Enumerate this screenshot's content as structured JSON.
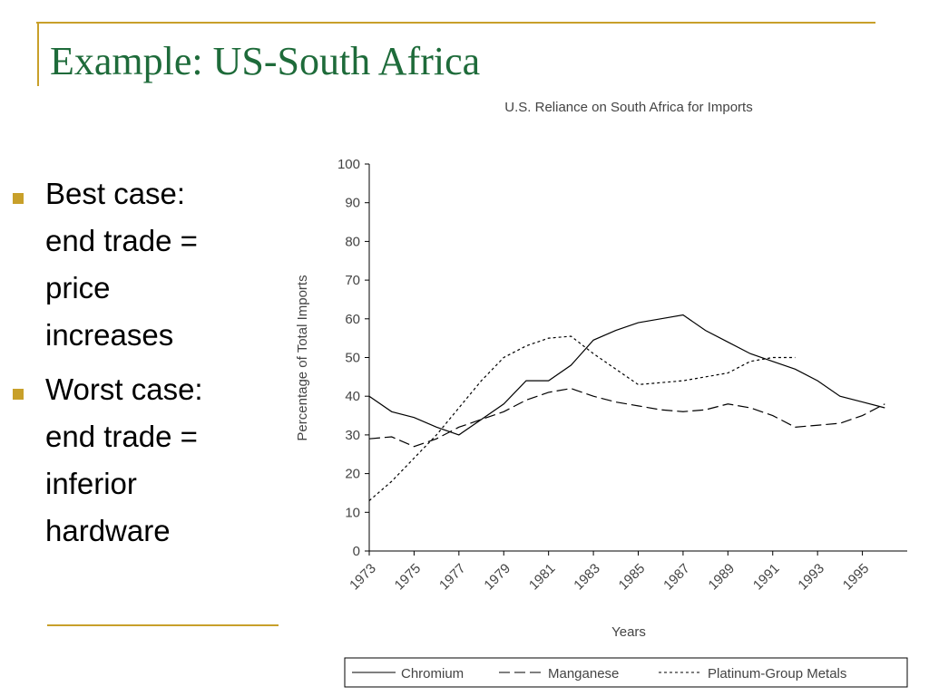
{
  "slide": {
    "title": "Example: US-South Africa",
    "bullets": [
      [
        "Best case:",
        "end trade =",
        "price",
        "increases"
      ],
      [
        "Worst case:",
        "end trade =",
        "inferior",
        "hardware"
      ]
    ]
  },
  "chart_data": {
    "type": "line",
    "title": "U.S. Reliance on South Africa for Imports",
    "x_label": "Years",
    "y_label": "Percentage of Total Imports",
    "x": [
      1973,
      1974,
      1975,
      1976,
      1977,
      1978,
      1979,
      1980,
      1981,
      1982,
      1983,
      1984,
      1985,
      1986,
      1987,
      1988,
      1989,
      1990,
      1991,
      1992,
      1993,
      1994,
      1995,
      1996
    ],
    "series": [
      {
        "name": "Chromium",
        "color": "#000000",
        "dash": "solid",
        "values": [
          40,
          36,
          34.5,
          32,
          30,
          34,
          38,
          44,
          44,
          48,
          54.5,
          57,
          59,
          60,
          61,
          57,
          54,
          51,
          49,
          47,
          44,
          40,
          38.5,
          37
        ]
      },
      {
        "name": "Manganese",
        "color": "#000000",
        "dash": "dashed",
        "values": [
          29,
          29.5,
          27,
          29,
          32,
          34,
          36,
          39,
          41,
          42,
          40,
          38.5,
          37.5,
          36.5,
          36,
          36.5,
          38,
          37,
          35,
          32,
          32.5,
          33,
          35,
          38
        ]
      },
      {
        "name": "Platinum-Group Metals",
        "color": "#000000",
        "dash": "dotted",
        "values": [
          13,
          18,
          24,
          30,
          37,
          44,
          50,
          53,
          55,
          55.5,
          51,
          47,
          43,
          43.5,
          44,
          45,
          46,
          49,
          50,
          50,
          null,
          null,
          null,
          null
        ]
      }
    ],
    "xlim": [
      1973,
      1997
    ],
    "xticks": [
      1973,
      1975,
      1977,
      1979,
      1981,
      1983,
      1985,
      1987,
      1989,
      1991,
      1993,
      1995
    ],
    "ylim": [
      0,
      100
    ],
    "yticks": [
      0,
      10,
      20,
      30,
      40,
      50,
      60,
      70,
      80,
      90,
      100
    ],
    "grid": false,
    "legend": "bottom"
  }
}
